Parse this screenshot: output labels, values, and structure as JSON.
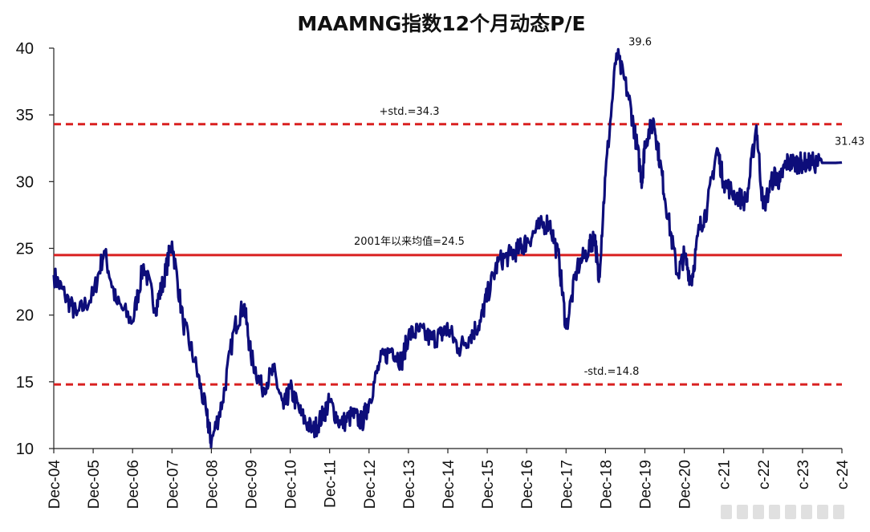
{
  "chart_data": {
    "type": "line",
    "title": "MAAMNG指数12个月动态P/E",
    "ylim": [
      10,
      40
    ],
    "y_ticks": [
      "10",
      "15",
      "20",
      "25",
      "30",
      "35",
      "40"
    ],
    "x_ticks": [
      "Dec-04",
      "Dec-05",
      "Dec-06",
      "Dec-07",
      "Dec-08",
      "Dec-09",
      "Dec-10",
      "Dec-11",
      "Dec-12",
      "Dec-13",
      "Dec-14",
      "Dec-15",
      "Dec-16",
      "Dec-17",
      "Dec-18",
      "Dec-19",
      "Dec-20",
      "c-21",
      "c-22",
      "c-23",
      "c-24"
    ],
    "series": [
      {
        "color": "#0d0d7a",
        "x": [
          2004.92,
          2005.2,
          2005.5,
          2005.92,
          2006.2,
          2006.5,
          2006.92,
          2007.2,
          2007.5,
          2007.7,
          2007.92,
          2008.2,
          2008.5,
          2008.8,
          2008.92,
          2009.2,
          2009.5,
          2009.75,
          2009.92,
          2010.2,
          2010.5,
          2010.75,
          2010.92,
          2011.2,
          2011.5,
          2011.75,
          2011.92,
          2012.2,
          2012.5,
          2012.75,
          2012.92,
          2013.2,
          2013.5,
          2013.75,
          2013.92,
          2014.2,
          2014.5,
          2014.75,
          2014.92,
          2015.2,
          2015.5,
          2015.75,
          2015.92,
          2016.2,
          2016.5,
          2016.75,
          2016.92,
          2017.2,
          2017.5,
          2017.75,
          2017.92,
          2018.2,
          2018.5,
          2018.65,
          2018.75,
          2018.92,
          2019.2,
          2019.5,
          2019.7,
          2019.85,
          2019.92,
          2020.15,
          2020.3,
          2020.5,
          2020.75,
          2020.92,
          2021.1,
          2021.3,
          2021.5,
          2021.75,
          2021.92,
          2022.2,
          2022.5,
          2022.75,
          2022.92,
          2023.2,
          2023.35,
          2023.5,
          2023.75,
          2023.92,
          2024.2,
          2024.5,
          2024.75,
          2024.92
        ],
        "values": [
          23.0,
          21.5,
          20.0,
          21.5,
          24.8,
          21.0,
          19.5,
          23.8,
          20.5,
          22.5,
          25.5,
          19.5,
          16.5,
          12.5,
          10.5,
          13.5,
          19.0,
          20.8,
          17.0,
          14.5,
          15.8,
          13.0,
          14.5,
          12.5,
          11.3,
          12.5,
          13.5,
          11.8,
          12.5,
          12.0,
          13.5,
          16.5,
          17.5,
          16.5,
          18.5,
          18.8,
          18.2,
          18.5,
          19.0,
          17.5,
          18.5,
          19.5,
          21.5,
          24.0,
          24.5,
          25.0,
          25.5,
          26.5,
          27.0,
          24.0,
          19.0,
          23.5,
          25.0,
          26.0,
          22.5,
          30.5,
          39.6,
          36.5,
          33.0,
          30.0,
          33.0,
          34.5,
          31.5,
          27.5,
          23.0,
          24.5,
          22.5,
          26.5,
          28.0,
          32.5,
          30.0,
          29.0,
          28.5,
          34.2,
          28.0,
          30.5,
          30.0,
          31.43,
          31.4,
          31.4,
          31.4,
          31.4,
          31.4,
          31.43
        ]
      }
    ],
    "reference_lines": [
      {
        "value": 34.3,
        "label": "+std.=34.3",
        "style": "dashed",
        "color": "#d92020"
      },
      {
        "value": 24.5,
        "label": "2001年以来均值=24.5",
        "style": "solid",
        "color": "#d92020"
      },
      {
        "value": 14.8,
        "label": "-std.=14.8",
        "style": "dashed",
        "color": "#d92020"
      }
    ],
    "annotations": [
      {
        "label": "39.6",
        "x": 2019.8,
        "y": 39.6
      },
      {
        "label": "31.43",
        "x": 2024.92,
        "y": 31.43
      }
    ],
    "grid": false,
    "legend": "none"
  }
}
